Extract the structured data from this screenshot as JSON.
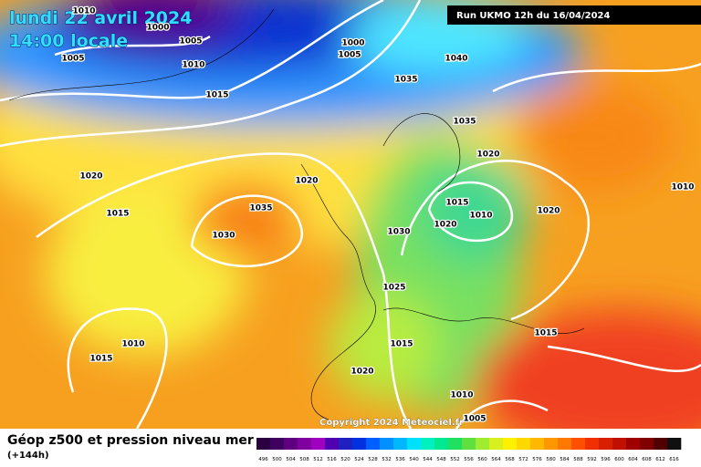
{
  "header": {
    "date": "lundi 22 avril 2024",
    "time": "14:00 locale",
    "run": "Run UKMO 12h du 16/04/2024"
  },
  "copyright": "Copyright 2024 Meteociel.fr",
  "legend": {
    "title": "Géop z500 et pression niveau mer",
    "subtitle": "(+144h)",
    "scale": [
      496,
      500,
      504,
      508,
      512,
      516,
      520,
      524,
      528,
      532,
      536,
      540,
      544,
      548,
      552,
      556,
      560,
      564,
      568,
      572,
      576,
      580,
      584,
      588,
      592,
      596,
      600,
      604,
      608,
      612,
      616
    ]
  },
  "isobars": [
    1010,
    1000,
    1005,
    1005,
    1010,
    1015,
    1000,
    1005,
    1040,
    1035,
    1035,
    1020,
    1020,
    1020,
    1015,
    1035,
    1015,
    1010,
    1020,
    1020,
    1010,
    1030,
    1030,
    1025,
    1010,
    1015,
    1015,
    1015,
    1020,
    1010,
    1005
  ]
}
